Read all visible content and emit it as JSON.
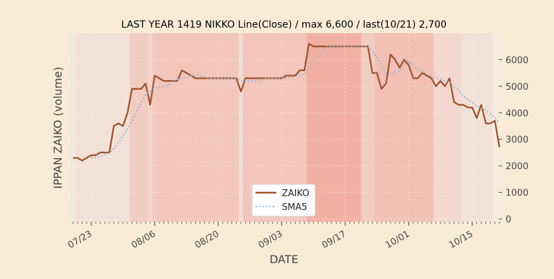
{
  "colors": {
    "background": "#faebd7",
    "plot_background": "#f3ece3",
    "zaiko_line": "#a0522d",
    "sma_line": "#8fb6d6",
    "shading": "#f08070",
    "text": "#444444",
    "grid": "#ffffff"
  },
  "chart_data": {
    "type": "line",
    "title": "LAST YEAR 1419 NIKKO Line(Close) / max 6,600 / last(10/21) 2,700",
    "xlabel": "DATE",
    "ylabel": "IPPAN ZAIKO (volume)",
    "ylim": [
      0,
      7000
    ],
    "y_ticks": [
      0,
      1000,
      2000,
      3000,
      4000,
      5000,
      6000
    ],
    "y_tick_labels": [
      "0",
      "1000",
      "2000",
      "3000",
      "4000",
      "5000",
      "6000"
    ],
    "y_axis_side": "right",
    "x_ticks": [
      "07/23",
      "08/06",
      "08/20",
      "09/03",
      "09/17",
      "10/01",
      "10/15"
    ],
    "grid": true,
    "legend_position": "lower-center",
    "series": [
      {
        "name": "ZAIKO",
        "style": "solid",
        "x": [
          "07/19",
          "07/20",
          "07/21",
          "07/22",
          "07/23",
          "07/24",
          "07/25",
          "07/26",
          "07/27",
          "07/28",
          "07/29",
          "07/30",
          "07/31",
          "08/01",
          "08/02",
          "08/03",
          "08/04",
          "08/05",
          "08/06",
          "08/07",
          "08/08",
          "08/09",
          "08/10",
          "08/11",
          "08/12",
          "08/13",
          "08/14",
          "08/15",
          "08/16",
          "08/17",
          "08/18",
          "08/19",
          "08/20",
          "08/21",
          "08/22",
          "08/23",
          "08/24",
          "08/25",
          "08/26",
          "08/27",
          "08/28",
          "08/29",
          "08/30",
          "08/31",
          "09/01",
          "09/02",
          "09/03",
          "09/04",
          "09/05",
          "09/06",
          "09/07",
          "09/08",
          "09/09",
          "09/10",
          "09/11",
          "09/12",
          "09/13",
          "09/14",
          "09/15",
          "09/16",
          "09/17",
          "09/18",
          "09/19",
          "09/20",
          "09/21",
          "09/22",
          "09/23",
          "09/24",
          "09/25",
          "09/26",
          "09/27",
          "09/28",
          "09/29",
          "09/30",
          "10/01",
          "10/02",
          "10/03",
          "10/04",
          "10/05",
          "10/06",
          "10/07",
          "10/08",
          "10/09",
          "10/10",
          "10/11",
          "10/12",
          "10/13",
          "10/14",
          "10/15",
          "10/16",
          "10/17",
          "10/18",
          "10/19",
          "10/20",
          "10/21"
        ],
        "values": [
          2300,
          2300,
          2200,
          2300,
          2400,
          2400,
          2500,
          2500,
          2500,
          3500,
          3600,
          3500,
          4000,
          4900,
          4900,
          4900,
          5100,
          4300,
          5400,
          5300,
          5200,
          5200,
          5200,
          5200,
          5600,
          5500,
          5400,
          5300,
          5300,
          5300,
          5300,
          5300,
          5300,
          5300,
          5300,
          5300,
          5300,
          4800,
          5300,
          5300,
          5300,
          5300,
          5300,
          5300,
          5300,
          5300,
          5300,
          5400,
          5400,
          5400,
          5600,
          5600,
          6600,
          6500,
          6500,
          6500,
          6500,
          6500,
          6500,
          6500,
          6500,
          6500,
          6500,
          6500,
          6500,
          6500,
          5500,
          5500,
          4900,
          5100,
          6200,
          6000,
          5700,
          6000,
          5800,
          5300,
          5300,
          5500,
          5400,
          5300,
          5000,
          5200,
          5000,
          5300,
          4400,
          4300,
          4300,
          4200,
          4200,
          3800,
          4300,
          3600,
          3600,
          3700,
          2700
        ]
      },
      {
        "name": "SMA5",
        "style": "dotted",
        "x": [
          "07/23",
          "07/24",
          "07/25",
          "07/26",
          "07/27",
          "07/28",
          "07/29",
          "07/30",
          "07/31",
          "08/01",
          "08/02",
          "08/03",
          "08/04",
          "08/05",
          "08/06",
          "08/07",
          "08/08",
          "08/09",
          "08/10",
          "08/11",
          "08/12",
          "08/13",
          "08/14",
          "08/15",
          "08/16",
          "08/17",
          "08/18",
          "08/19",
          "08/20",
          "08/21",
          "08/22",
          "08/23",
          "08/24",
          "08/25",
          "08/26",
          "08/27",
          "08/28",
          "08/29",
          "08/30",
          "08/31",
          "09/01",
          "09/02",
          "09/03",
          "09/04",
          "09/05",
          "09/06",
          "09/07",
          "09/08",
          "09/09",
          "09/10",
          "09/11",
          "09/12",
          "09/13",
          "09/14",
          "09/15",
          "09/16",
          "09/17",
          "09/18",
          "09/19",
          "09/20",
          "09/21",
          "09/22",
          "09/23",
          "09/24",
          "09/25",
          "09/26",
          "09/27",
          "09/28",
          "09/29",
          "09/30",
          "10/01",
          "10/02",
          "10/03",
          "10/04",
          "10/05",
          "10/06",
          "10/07",
          "10/08",
          "10/09",
          "10/10",
          "10/11",
          "10/12",
          "10/13",
          "10/14",
          "10/15",
          "10/16",
          "10/17",
          "10/18",
          "10/19",
          "10/20",
          "10/21"
        ],
        "values": [
          2300,
          2320,
          2360,
          2420,
          2480,
          2660,
          2880,
          3120,
          3380,
          3680,
          4020,
          4400,
          4700,
          4800,
          4920,
          4980,
          5000,
          5020,
          5220,
          5240,
          5320,
          5340,
          5380,
          5400,
          5420,
          5340,
          5300,
          5300,
          5300,
          5300,
          5300,
          5300,
          5300,
          5200,
          5200,
          5200,
          5200,
          5200,
          5300,
          5300,
          5300,
          5300,
          5300,
          5320,
          5340,
          5360,
          5420,
          5460,
          5720,
          5940,
          6140,
          6320,
          6520,
          6500,
          6500,
          6500,
          6500,
          6500,
          6500,
          6500,
          6500,
          6500,
          6300,
          6100,
          5780,
          5500,
          5440,
          5540,
          5580,
          5800,
          5940,
          5760,
          5620,
          5580,
          5460,
          5360,
          5300,
          5280,
          5180,
          5160,
          4960,
          4840,
          4640,
          4500,
          4400,
          4240,
          4200,
          4080,
          3960,
          3820,
          3620
        ]
      }
    ],
    "shaded_bands": [
      {
        "start": "07/19",
        "end": "07/19",
        "intensity": 0.05
      },
      {
        "start": "07/20",
        "end": "07/31",
        "intensity": 0.1
      },
      {
        "start": "08/01",
        "end": "08/04",
        "intensity": 0.3
      },
      {
        "start": "08/05",
        "end": "08/05",
        "intensity": 0.2
      },
      {
        "start": "08/06",
        "end": "08/24",
        "intensity": 0.35
      },
      {
        "start": "08/25",
        "end": "08/25",
        "intensity": 0.15
      },
      {
        "start": "08/26",
        "end": "09/08",
        "intensity": 0.35
      },
      {
        "start": "09/09",
        "end": "09/20",
        "intensity": 0.55
      },
      {
        "start": "09/21",
        "end": "09/23",
        "intensity": 0.3
      },
      {
        "start": "09/24",
        "end": "10/06",
        "intensity": 0.4
      },
      {
        "start": "10/07",
        "end": "10/12",
        "intensity": 0.18
      },
      {
        "start": "10/13",
        "end": "10/19",
        "intensity": 0.1
      }
    ]
  }
}
